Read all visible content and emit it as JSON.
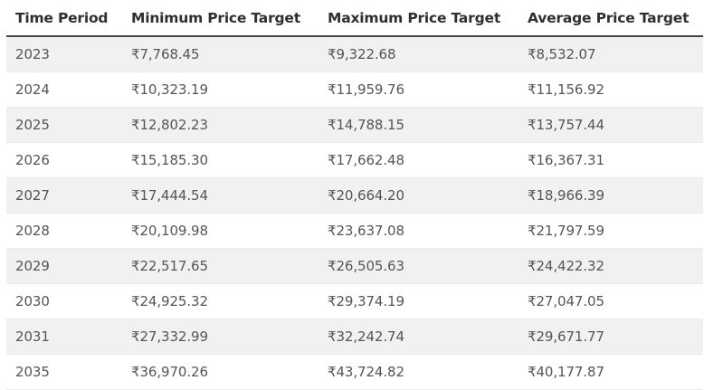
{
  "table": {
    "headers": [
      "Time Period",
      "Minimum Price Target",
      "Maximum Price Target",
      "Average Price Target"
    ],
    "rows": [
      [
        "2023",
        "₹7,768.45",
        "₹9,322.68",
        "₹8,532.07"
      ],
      [
        "2024",
        "₹10,323.19",
        "₹11,959.76",
        "₹11,156.92"
      ],
      [
        "2025",
        "₹12,802.23",
        "₹14,788.15",
        "₹13,757.44"
      ],
      [
        "2026",
        "₹15,185.30",
        "₹17,662.48",
        "₹16,367.31"
      ],
      [
        "2027",
        "₹17,444.54",
        "₹20,664.20",
        "₹18,966.39"
      ],
      [
        "2028",
        "₹20,109.98",
        "₹23,637.08",
        "₹21,797.59"
      ],
      [
        "2029",
        "₹22,517.65",
        "₹26,505.63",
        "₹24,422.32"
      ],
      [
        "2030",
        "₹24,925.32",
        "₹29,374.19",
        "₹27,047.05"
      ],
      [
        "2031",
        "₹27,332.99",
        "₹32,242.74",
        "₹29,671.77"
      ],
      [
        "2035",
        "₹36,970.26",
        "₹43,724.82",
        "₹40,177.87"
      ]
    ]
  }
}
